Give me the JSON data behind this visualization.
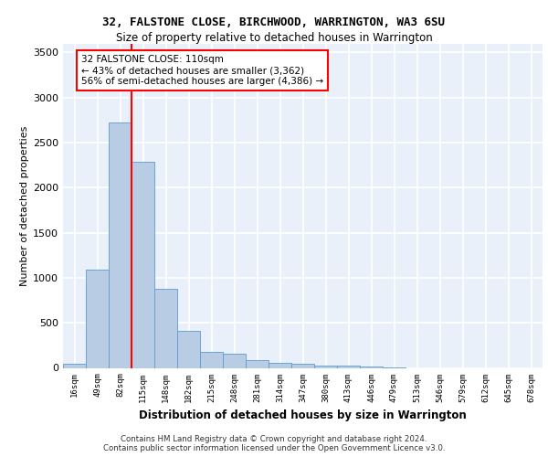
{
  "title1": "32, FALSTONE CLOSE, BIRCHWOOD, WARRINGTON, WA3 6SU",
  "title2": "Size of property relative to detached houses in Warrington",
  "xlabel": "Distribution of detached houses by size in Warrington",
  "ylabel": "Number of detached properties",
  "categories": [
    "16sqm",
    "49sqm",
    "82sqm",
    "115sqm",
    "148sqm",
    "182sqm",
    "215sqm",
    "248sqm",
    "281sqm",
    "314sqm",
    "347sqm",
    "380sqm",
    "413sqm",
    "446sqm",
    "479sqm",
    "513sqm",
    "546sqm",
    "579sqm",
    "612sqm",
    "645sqm",
    "678sqm"
  ],
  "values": [
    50,
    1090,
    2720,
    2290,
    880,
    415,
    175,
    160,
    90,
    60,
    50,
    30,
    30,
    15,
    10,
    0,
    0,
    0,
    0,
    0,
    0
  ],
  "bar_color": "#b8cce4",
  "bar_edge_color": "#5b9bd5",
  "background_color": "#eaf0f9",
  "grid_color": "#ffffff",
  "vline_color": "red",
  "annotation_text": "32 FALSTONE CLOSE: 110sqm\n← 43% of detached houses are smaller (3,362)\n56% of semi-detached houses are larger (4,386) →",
  "annotation_box_color": "white",
  "annotation_box_edge": "red",
  "ylim": [
    0,
    3600
  ],
  "yticks": [
    0,
    500,
    1000,
    1500,
    2000,
    2500,
    3000,
    3500
  ],
  "footer1": "Contains HM Land Registry data © Crown copyright and database right 2024.",
  "footer2": "Contains public sector information licensed under the Open Government Licence v3.0."
}
